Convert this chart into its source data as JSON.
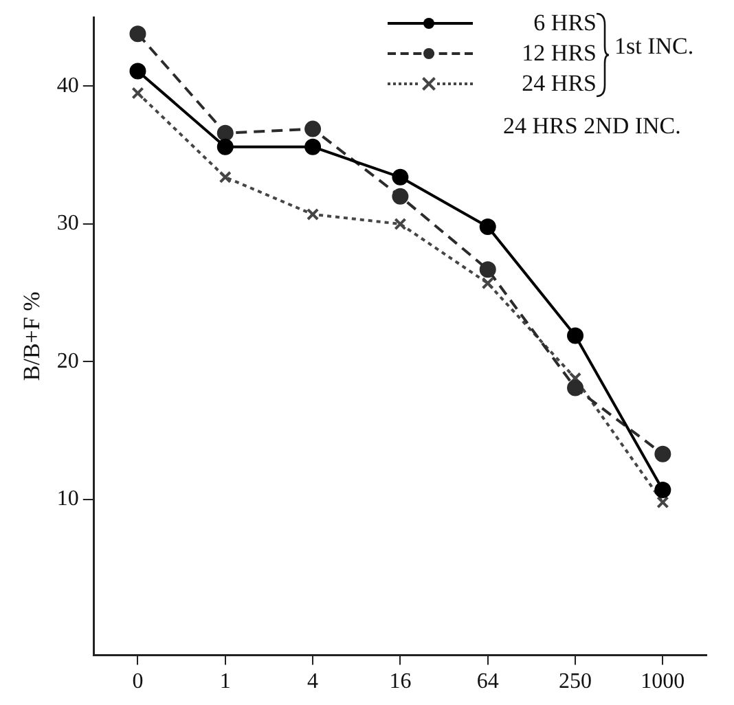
{
  "chart_data": {
    "type": "line",
    "ylabel": "B/B+F %",
    "categories": [
      "0",
      "1",
      "4",
      "16",
      "64",
      "250",
      "1000"
    ],
    "ylim": [
      -1.3,
      45
    ],
    "yticks": [
      10,
      20,
      30,
      40
    ],
    "grid": false,
    "legend": "top right",
    "series": [
      {
        "name": "6 HRS",
        "color": "#000000",
        "marker": "circle",
        "line_style": "solid",
        "values": [
          41.1,
          35.6,
          35.6,
          33.4,
          29.8,
          21.9,
          10.7
        ]
      },
      {
        "name": "12 HRS",
        "color": "#2b2b2b",
        "marker": "circle",
        "line_style": "dashed",
        "values": [
          43.8,
          36.6,
          36.9,
          32.0,
          26.7,
          18.1,
          13.3
        ]
      },
      {
        "name": "24 HRS",
        "color": "#454545",
        "marker": "cross",
        "line_style": "dotted",
        "values": [
          39.5,
          33.4,
          30.7,
          30.0,
          25.7,
          18.8,
          9.8
        ]
      }
    ],
    "annotations": [
      "1st INC.",
      "24 HRS 2ND INC."
    ]
  }
}
